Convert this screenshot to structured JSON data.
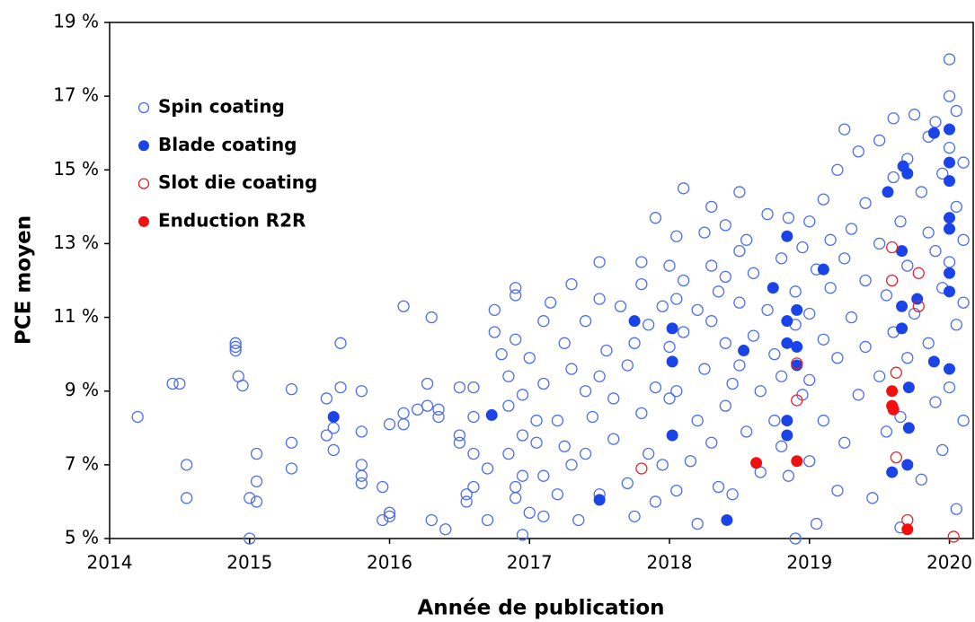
{
  "chart_data": {
    "type": "scatter",
    "xlabel": "Année de publication",
    "ylabel": "PCE moyen",
    "xlim": [
      2014,
      2020.17
    ],
    "ylim": [
      5,
      19
    ],
    "xticks": [
      2014,
      2015,
      2016,
      2017,
      2018,
      2019,
      2020
    ],
    "yticks": [
      {
        "value": 5,
        "label": "5 %"
      },
      {
        "value": 7,
        "label": "7 %"
      },
      {
        "value": 9,
        "label": "9 %"
      },
      {
        "value": 11,
        "label": "11 %"
      },
      {
        "value": 13,
        "label": "13 %"
      },
      {
        "value": 15,
        "label": "15 %"
      },
      {
        "value": 17,
        "label": "17 %"
      },
      {
        "value": 19,
        "label": "19 %"
      }
    ],
    "grid": false,
    "legend": "upper left",
    "series": [
      {
        "name": "Spin coating",
        "color": "#4a6cf0",
        "marker": "open",
        "x": [
          2014.2,
          2014.45,
          2014.5,
          2014.55,
          2014.55,
          2014.9,
          2014.9,
          2014.9,
          2014.92,
          2014.95,
          2015.0,
          2015.0,
          2015.05,
          2015.05,
          2015.05,
          2015.3,
          2015.3,
          2015.3,
          2015.55,
          2015.55,
          2015.6,
          2015.6,
          2015.65,
          2015.65,
          2015.8,
          2015.8,
          2015.8,
          2015.8,
          2015.8,
          2015.95,
          2015.95,
          2016.0,
          2016.0,
          2016.0,
          2016.1,
          2016.1,
          2016.1,
          2016.2,
          2016.3,
          2016.27,
          2016.27,
          2016.3,
          2016.35,
          2016.35,
          2016.4,
          2016.5,
          2016.5,
          2016.5,
          2016.55,
          2016.55,
          2016.6,
          2016.6,
          2016.6,
          2016.6,
          2016.7,
          2016.7,
          2016.75,
          2016.75,
          2016.8,
          2016.85,
          2016.85,
          2016.85,
          2016.9,
          2016.9,
          2016.9,
          2016.9,
          2016.9,
          2016.95,
          2016.95,
          2016.95,
          2016.95,
          2017.0,
          2017.0,
          2017.05,
          2017.05,
          2017.1,
          2017.1,
          2017.1,
          2017.1,
          2017.15,
          2017.2,
          2017.2,
          2017.25,
          2017.25,
          2017.3,
          2017.3,
          2017.3,
          2017.35,
          2017.4,
          2017.4,
          2017.4,
          2017.45,
          2017.5,
          2017.5,
          2017.5,
          2017.5,
          2017.55,
          2017.6,
          2017.6,
          2017.65,
          2017.7,
          2017.7,
          2017.75,
          2017.75,
          2017.8,
          2017.8,
          2017.8,
          2017.85,
          2017.85,
          2017.9,
          2017.9,
          2017.9,
          2017.95,
          2017.95,
          2018.0,
          2018.0,
          2018.0,
          2018.05,
          2018.05,
          2018.05,
          2018.05,
          2018.1,
          2018.1,
          2018.1,
          2018.15,
          2018.2,
          2018.2,
          2018.2,
          2018.25,
          2018.25,
          2018.3,
          2018.3,
          2018.3,
          2018.3,
          2018.35,
          2018.35,
          2018.4,
          2018.4,
          2018.4,
          2018.4,
          2018.45,
          2018.45,
          2018.5,
          2018.5,
          2018.5,
          2018.5,
          2018.55,
          2018.55,
          2018.6,
          2018.6,
          2018.65,
          2018.65,
          2018.7,
          2018.7,
          2018.75,
          2018.75,
          2018.8,
          2018.8,
          2018.8,
          2018.85,
          2018.85,
          2018.9,
          2018.9,
          2018.9,
          2018.95,
          2018.95,
          2019.0,
          2019.0,
          2019.0,
          2019.0,
          2019.05,
          2019.05,
          2019.1,
          2019.1,
          2019.1,
          2019.15,
          2019.15,
          2019.2,
          2019.2,
          2019.2,
          2019.25,
          2019.25,
          2019.25,
          2019.3,
          2019.3,
          2019.35,
          2019.35,
          2019.4,
          2019.4,
          2019.4,
          2019.45,
          2019.5,
          2019.5,
          2019.5,
          2019.55,
          2019.55,
          2019.6,
          2019.6,
          2019.6,
          2019.65,
          2019.65,
          2019.65,
          2019.7,
          2019.7,
          2019.7,
          2019.75,
          2019.75,
          2019.8,
          2019.8,
          2019.85,
          2019.85,
          2019.85,
          2019.9,
          2019.9,
          2019.9,
          2019.95,
          2019.95,
          2019.95,
          2020.0,
          2020.0,
          2020.0,
          2020.0,
          2020.0,
          2020.05,
          2020.05,
          2020.05,
          2020.05,
          2020.1,
          2020.1,
          2020.1,
          2020.1
        ],
        "values": [
          8.3,
          9.2,
          9.2,
          7.0,
          6.1,
          10.3,
          10.1,
          10.2,
          9.4,
          9.15,
          6.1,
          5.0,
          7.3,
          6.55,
          6.0,
          9.05,
          7.6,
          6.9,
          8.8,
          7.8,
          8.0,
          7.4,
          10.3,
          9.1,
          9.0,
          7.9,
          7.0,
          6.7,
          6.5,
          6.4,
          5.5,
          5.7,
          5.6,
          8.1,
          11.3,
          8.4,
          8.1,
          8.5,
          11.0,
          9.2,
          8.6,
          5.5,
          8.3,
          8.5,
          5.25,
          9.1,
          7.8,
          7.6,
          6.2,
          6.0,
          9.1,
          8.3,
          7.3,
          6.4,
          6.9,
          5.5,
          11.2,
          10.6,
          10.0,
          9.4,
          8.6,
          7.3,
          6.4,
          6.1,
          10.4,
          11.6,
          11.8,
          8.9,
          7.8,
          6.7,
          5.1,
          9.9,
          5.7,
          8.2,
          7.6,
          10.9,
          9.2,
          6.7,
          5.6,
          11.4,
          8.2,
          6.2,
          10.3,
          7.5,
          11.9,
          9.6,
          7.0,
          5.5,
          10.9,
          9.0,
          7.3,
          8.3,
          11.5,
          9.4,
          12.5,
          6.2,
          10.1,
          8.8,
          7.7,
          11.3,
          9.7,
          6.5,
          10.3,
          5.6,
          11.9,
          12.5,
          8.4,
          10.8,
          7.3,
          9.1,
          13.7,
          6.0,
          11.3,
          7.0,
          12.4,
          10.2,
          8.8,
          13.2,
          11.5,
          9.0,
          6.3,
          14.5,
          12.0,
          10.6,
          7.1,
          11.2,
          8.2,
          5.4,
          13.3,
          9.6,
          14.0,
          12.4,
          10.9,
          7.6,
          11.7,
          6.4,
          13.5,
          12.1,
          10.3,
          8.6,
          9.2,
          6.2,
          14.4,
          12.8,
          11.4,
          9.7,
          7.9,
          13.1,
          10.5,
          12.2,
          9.0,
          6.8,
          13.8,
          11.2,
          10.0,
          8.2,
          12.6,
          9.4,
          7.5,
          13.7,
          6.7,
          11.7,
          10.8,
          5.0,
          12.9,
          8.9,
          13.6,
          11.1,
          9.3,
          7.1,
          12.3,
          5.4,
          14.2,
          10.4,
          8.2,
          13.1,
          11.8,
          15.0,
          9.9,
          6.3,
          16.1,
          12.6,
          7.6,
          13.4,
          11.0,
          15.5,
          8.9,
          14.1,
          12.0,
          10.2,
          6.1,
          15.8,
          13.0,
          9.4,
          11.6,
          7.9,
          16.4,
          14.8,
          10.6,
          13.6,
          8.3,
          5.3,
          15.3,
          12.4,
          9.9,
          16.5,
          11.1,
          14.4,
          6.6,
          15.9,
          13.3,
          10.3,
          16.3,
          12.8,
          8.7,
          14.9,
          11.8,
          7.4,
          17.0,
          15.6,
          12.5,
          9.1,
          18.0,
          16.6,
          14.0,
          10.8,
          5.8,
          15.2,
          13.1,
          11.4,
          8.2
        ]
      },
      {
        "name": "Blade coating",
        "color": "#1a44e8",
        "marker": "filled",
        "x": [
          2015.6,
          2016.73,
          2017.5,
          2017.75,
          2018.02,
          2018.02,
          2018.02,
          2018.41,
          2018.53,
          2018.74,
          2018.84,
          2018.84,
          2018.84,
          2018.84,
          2018.84,
          2018.91,
          2018.91,
          2018.91,
          2019.1,
          2019.56,
          2019.59,
          2019.66,
          2019.66,
          2019.66,
          2019.67,
          2019.7,
          2019.77,
          2019.71,
          2019.7,
          2019.71,
          2019.89,
          2020.0,
          2020.0,
          2020.0,
          2020.0,
          2020.0,
          2020.0,
          2020.0,
          2020.0,
          2019.89
        ],
        "values": [
          8.3,
          8.35,
          6.05,
          10.9,
          9.8,
          7.8,
          10.7,
          5.5,
          10.1,
          11.8,
          13.2,
          10.9,
          8.2,
          7.8,
          10.3,
          11.2,
          10.2,
          9.7,
          12.3,
          14.4,
          6.8,
          12.8,
          10.7,
          11.3,
          15.1,
          14.9,
          11.5,
          9.1,
          7.0,
          8.0,
          16.0,
          16.1,
          15.2,
          14.7,
          13.7,
          13.4,
          12.2,
          11.7,
          9.6,
          9.8
        ]
      },
      {
        "name": "Slot die coating",
        "color": "#e8202a",
        "marker": "open",
        "x": [
          2017.8,
          2018.91,
          2018.91,
          2019.59,
          2019.59,
          2019.62,
          2019.62,
          2019.78,
          2019.78,
          2019.7,
          2020.03
        ],
        "values": [
          6.9,
          9.75,
          8.75,
          12.9,
          12.0,
          9.5,
          7.2,
          12.2,
          11.3,
          5.5,
          5.05
        ]
      },
      {
        "name": "Enduction R2R",
        "color": "#f01010",
        "marker": "filled",
        "x": [
          2018.62,
          2018.91,
          2019.59,
          2019.59,
          2019.6,
          2019.7
        ],
        "values": [
          7.05,
          7.1,
          9.0,
          8.6,
          8.5,
          5.25
        ]
      }
    ]
  }
}
